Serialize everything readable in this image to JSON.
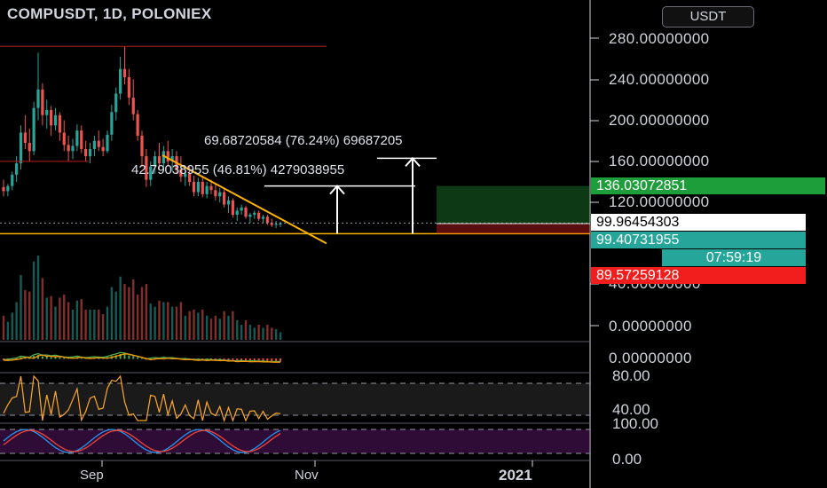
{
  "header": {
    "title": "COMPUSDT, 1D, POLONIEX",
    "currency": "USDT"
  },
  "measurements": {
    "large": "69.68720584 (76.24%) 69687205",
    "small": "42.79038955 (46.81%) 4279038955"
  },
  "price_axis": [
    "280.00000000",
    "240.00000000",
    "200.00000000",
    "160.00000000",
    "120.00000000",
    "40.00000000",
    "0.00000000"
  ],
  "price_tags": {
    "target": "136.03072851",
    "last": "99.96454303",
    "current": "99.40731955",
    "countdown": "07:59:19",
    "stop": "89.57259128"
  },
  "macd_axis": "0.00000000",
  "rsi_axis": [
    "80.00",
    "40.00"
  ],
  "stoch_axis": [
    "100.00",
    "0.00"
  ],
  "time_axis": [
    "Sep",
    "Nov",
    "2021"
  ],
  "colors": {
    "up": "#26a69a",
    "down": "#ef5350",
    "trendline": "#ffb300",
    "target_tag": "#1e9e3a",
    "stop_tag": "#f21d1d",
    "current_tag": "#26a69a"
  },
  "chart_data": {
    "type": "candlestick",
    "symbol": "COMPUSDT",
    "interval": "1D",
    "exchange": "POLONIEX",
    "y_range": [
      0,
      280
    ],
    "candles": [
      {
        "o": 135,
        "h": 142,
        "l": 126,
        "c": 131
      },
      {
        "o": 131,
        "h": 138,
        "l": 126,
        "c": 136
      },
      {
        "o": 136,
        "h": 150,
        "l": 132,
        "c": 147
      },
      {
        "o": 147,
        "h": 165,
        "l": 140,
        "c": 158
      },
      {
        "o": 158,
        "h": 195,
        "l": 152,
        "c": 188
      },
      {
        "o": 188,
        "h": 205,
        "l": 172,
        "c": 178
      },
      {
        "o": 178,
        "h": 192,
        "l": 160,
        "c": 170
      },
      {
        "o": 170,
        "h": 218,
        "l": 166,
        "c": 212
      },
      {
        "o": 212,
        "h": 266,
        "l": 200,
        "c": 230
      },
      {
        "o": 230,
        "h": 236,
        "l": 195,
        "c": 205
      },
      {
        "o": 205,
        "h": 220,
        "l": 192,
        "c": 210
      },
      {
        "o": 210,
        "h": 214,
        "l": 185,
        "c": 195
      },
      {
        "o": 195,
        "h": 212,
        "l": 190,
        "c": 205
      },
      {
        "o": 205,
        "h": 208,
        "l": 180,
        "c": 188
      },
      {
        "o": 188,
        "h": 200,
        "l": 170,
        "c": 176
      },
      {
        "o": 176,
        "h": 185,
        "l": 160,
        "c": 170
      },
      {
        "o": 170,
        "h": 182,
        "l": 162,
        "c": 175
      },
      {
        "o": 175,
        "h": 196,
        "l": 170,
        "c": 190
      },
      {
        "o": 190,
        "h": 195,
        "l": 168,
        "c": 172
      },
      {
        "o": 172,
        "h": 180,
        "l": 160,
        "c": 165
      },
      {
        "o": 165,
        "h": 178,
        "l": 158,
        "c": 172
      },
      {
        "o": 172,
        "h": 185,
        "l": 165,
        "c": 180
      },
      {
        "o": 180,
        "h": 190,
        "l": 170,
        "c": 174
      },
      {
        "o": 174,
        "h": 182,
        "l": 165,
        "c": 170
      },
      {
        "o": 170,
        "h": 190,
        "l": 168,
        "c": 186
      },
      {
        "o": 186,
        "h": 215,
        "l": 180,
        "c": 208
      },
      {
        "o": 208,
        "h": 232,
        "l": 200,
        "c": 226
      },
      {
        "o": 226,
        "h": 262,
        "l": 220,
        "c": 250
      },
      {
        "o": 250,
        "h": 272,
        "l": 235,
        "c": 242
      },
      {
        "o": 242,
        "h": 250,
        "l": 215,
        "c": 222
      },
      {
        "o": 222,
        "h": 240,
        "l": 200,
        "c": 206
      },
      {
        "o": 206,
        "h": 210,
        "l": 180,
        "c": 185
      },
      {
        "o": 185,
        "h": 190,
        "l": 155,
        "c": 165
      },
      {
        "o": 165,
        "h": 172,
        "l": 135,
        "c": 142
      },
      {
        "o": 142,
        "h": 160,
        "l": 136,
        "c": 155
      },
      {
        "o": 155,
        "h": 170,
        "l": 148,
        "c": 165
      },
      {
        "o": 165,
        "h": 178,
        "l": 152,
        "c": 158
      },
      {
        "o": 158,
        "h": 175,
        "l": 150,
        "c": 170
      },
      {
        "o": 170,
        "h": 180,
        "l": 155,
        "c": 160
      },
      {
        "o": 160,
        "h": 172,
        "l": 150,
        "c": 165
      },
      {
        "o": 165,
        "h": 170,
        "l": 148,
        "c": 152
      },
      {
        "o": 152,
        "h": 165,
        "l": 140,
        "c": 145
      },
      {
        "o": 145,
        "h": 152,
        "l": 136,
        "c": 148
      },
      {
        "o": 148,
        "h": 155,
        "l": 136,
        "c": 140
      },
      {
        "o": 140,
        "h": 146,
        "l": 126,
        "c": 130
      },
      {
        "o": 130,
        "h": 144,
        "l": 126,
        "c": 140
      },
      {
        "o": 140,
        "h": 145,
        "l": 125,
        "c": 128
      },
      {
        "o": 128,
        "h": 140,
        "l": 124,
        "c": 136
      },
      {
        "o": 136,
        "h": 142,
        "l": 128,
        "c": 132
      },
      {
        "o": 132,
        "h": 138,
        "l": 122,
        "c": 126
      },
      {
        "o": 126,
        "h": 134,
        "l": 120,
        "c": 130
      },
      {
        "o": 130,
        "h": 134,
        "l": 115,
        "c": 118
      },
      {
        "o": 118,
        "h": 126,
        "l": 110,
        "c": 122
      },
      {
        "o": 122,
        "h": 124,
        "l": 105,
        "c": 108
      },
      {
        "o": 108,
        "h": 115,
        "l": 102,
        "c": 112
      },
      {
        "o": 112,
        "h": 118,
        "l": 108,
        "c": 115
      },
      {
        "o": 115,
        "h": 117,
        "l": 104,
        "c": 106
      },
      {
        "o": 106,
        "h": 110,
        "l": 100,
        "c": 108
      },
      {
        "o": 108,
        "h": 112,
        "l": 104,
        "c": 110
      },
      {
        "o": 110,
        "h": 112,
        "l": 102,
        "c": 104
      },
      {
        "o": 104,
        "h": 108,
        "l": 100,
        "c": 106
      },
      {
        "o": 106,
        "h": 108,
        "l": 98,
        "c": 100
      },
      {
        "o": 100,
        "h": 104,
        "l": 96,
        "c": 98
      },
      {
        "o": 98,
        "h": 102,
        "l": 95,
        "c": 99
      },
      {
        "o": 99,
        "h": 101,
        "l": 96,
        "c": 99.4
      }
    ],
    "resistance_line": 272,
    "support_line": 160
  }
}
